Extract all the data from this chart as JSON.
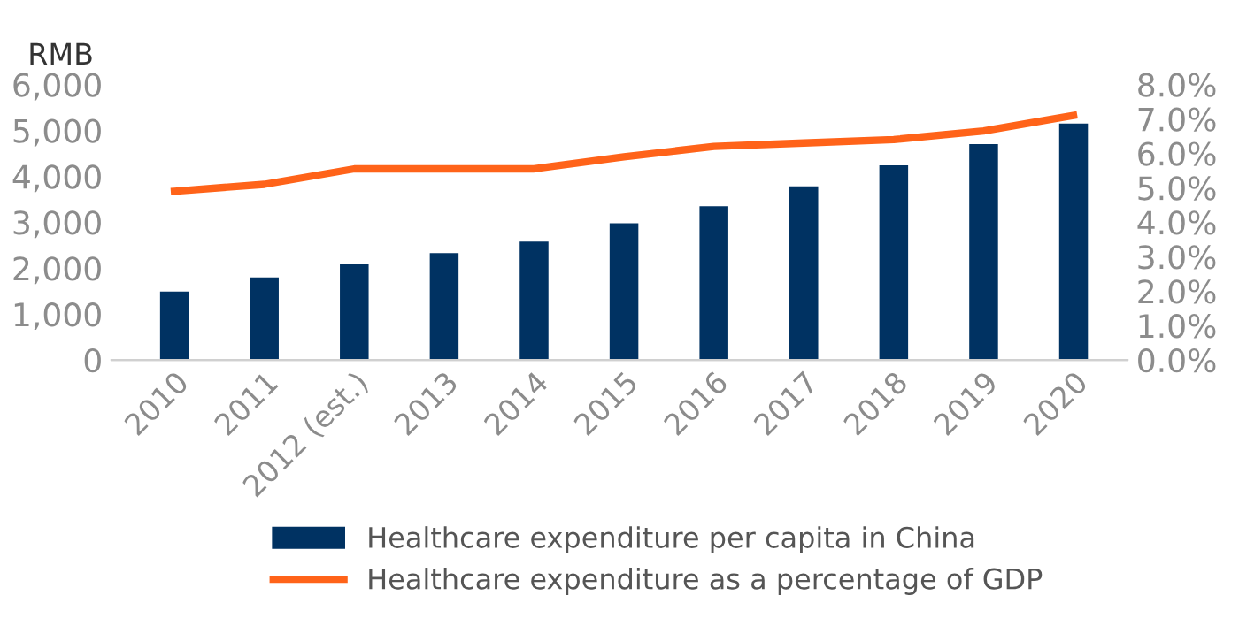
{
  "chart_data": {
    "type": "bar",
    "ylabel": "RMB",
    "categories": [
      "2010",
      "2011",
      "2012 (est.)",
      "2013",
      "2014",
      "2015",
      "2016",
      "2017",
      "2018",
      "2019",
      "2020"
    ],
    "series": [
      {
        "name": "Healthcare expenditure per capita in China",
        "color": "#003262",
        "values": [
          1490,
          1800,
          2080,
          2330,
          2580,
          2980,
          3350,
          3780,
          4240,
          4700,
          5150
        ]
      },
      {
        "name": "Healthcare expenditure as a percentage of GDP",
        "type": "line",
        "axis": "y2",
        "color": "#ff6319",
        "values": [
          4.9,
          5.1,
          5.55,
          5.55,
          5.55,
          5.9,
          6.2,
          6.3,
          6.4,
          6.65,
          7.1
        ]
      }
    ],
    "ylim": [
      0,
      6000
    ],
    "yticks": [
      {
        "value": 0,
        "label": "0"
      },
      {
        "value": 1000,
        "label": "1,000"
      },
      {
        "value": 2000,
        "label": "2,000"
      },
      {
        "value": 3000,
        "label": "3,000"
      },
      {
        "value": 4000,
        "label": "4,000"
      },
      {
        "value": 5000,
        "label": "5,000"
      },
      {
        "value": 6000,
        "label": "6,000"
      }
    ],
    "y2lim": [
      0,
      8
    ],
    "y2ticks": [
      {
        "value": 0,
        "label": "0.0%"
      },
      {
        "value": 1,
        "label": "1.0%"
      },
      {
        "value": 2,
        "label": "2.0%"
      },
      {
        "value": 3,
        "label": "3.0%"
      },
      {
        "value": 4,
        "label": "4.0%"
      },
      {
        "value": 5,
        "label": "5.0%"
      },
      {
        "value": 6,
        "label": "6.0%"
      },
      {
        "value": 7,
        "label": "7.0%"
      },
      {
        "value": 8,
        "label": "8.0%"
      }
    ],
    "grid": false,
    "legend": "bottom",
    "marker": "none",
    "line_style": "solid"
  }
}
